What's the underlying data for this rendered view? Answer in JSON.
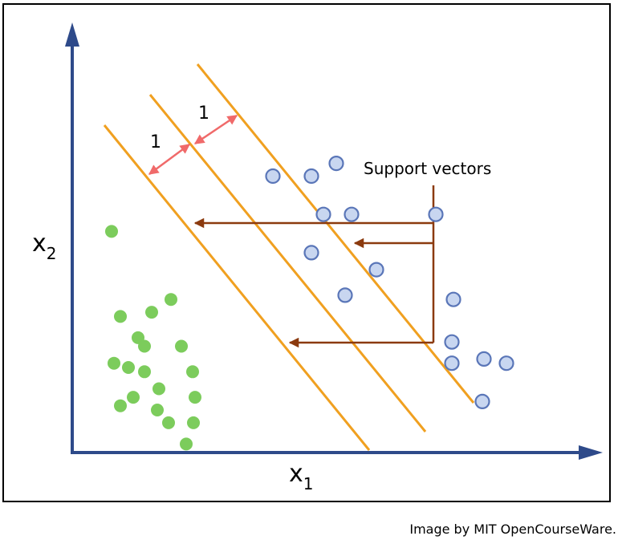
{
  "axes": {
    "x_label": "x",
    "x_subscript": "1",
    "y_label": "x",
    "y_subscript": "2",
    "color": "#2e4a8a"
  },
  "margin_labels": [
    "1",
    "1"
  ],
  "annotation": {
    "text": "Support vectors"
  },
  "caption": "Image by MIT OpenCourseWare.",
  "colors": {
    "hyperplane": "#f0a020",
    "margin_arrow": "#f06a6a",
    "pointer_arrow": "#8b3a0e",
    "class_a_fill": "#7ccc5c",
    "class_b_fill": "#c8d6f0",
    "class_b_stroke": "#5a76b8"
  },
  "chart_data": {
    "type": "scatter",
    "title": "",
    "xlabel": "x1",
    "ylabel": "x2",
    "series": [
      {
        "name": "",
        "marker": "filled-green",
        "points": [
          [
            49,
            52
          ],
          [
            123,
            36
          ],
          [
            99,
            33
          ],
          [
            60,
            32
          ],
          [
            82,
            27
          ],
          [
            90,
            25
          ],
          [
            136,
            25
          ],
          [
            52,
            21
          ],
          [
            70,
            20
          ],
          [
            90,
            19
          ],
          [
            108,
            15
          ],
          [
            76,
            13
          ],
          [
            60,
            11
          ],
          [
            106,
            10
          ],
          [
            150,
            19
          ],
          [
            153,
            13
          ],
          [
            151,
            7
          ],
          [
            120,
            7
          ],
          [
            142,
            2
          ]
        ]
      },
      {
        "name": "",
        "marker": "open-blue",
        "points": [
          [
            250,
            65
          ],
          [
            298,
            65
          ],
          [
            329,
            68
          ],
          [
            313,
            56
          ],
          [
            348,
            56
          ],
          [
            298,
            47
          ],
          [
            379,
            43
          ],
          [
            453,
            56
          ],
          [
            340,
            37
          ],
          [
            475,
            36
          ],
          [
            473,
            26
          ],
          [
            473,
            21
          ],
          [
            513,
            22
          ],
          [
            541,
            21
          ],
          [
            511,
            12
          ]
        ]
      }
    ],
    "support_vectors": [
      [
        139,
        36
      ],
      [
        146,
        55
      ],
      [
        258,
        24
      ]
    ],
    "hyperplane_offsets": [
      -1,
      0,
      1
    ]
  }
}
